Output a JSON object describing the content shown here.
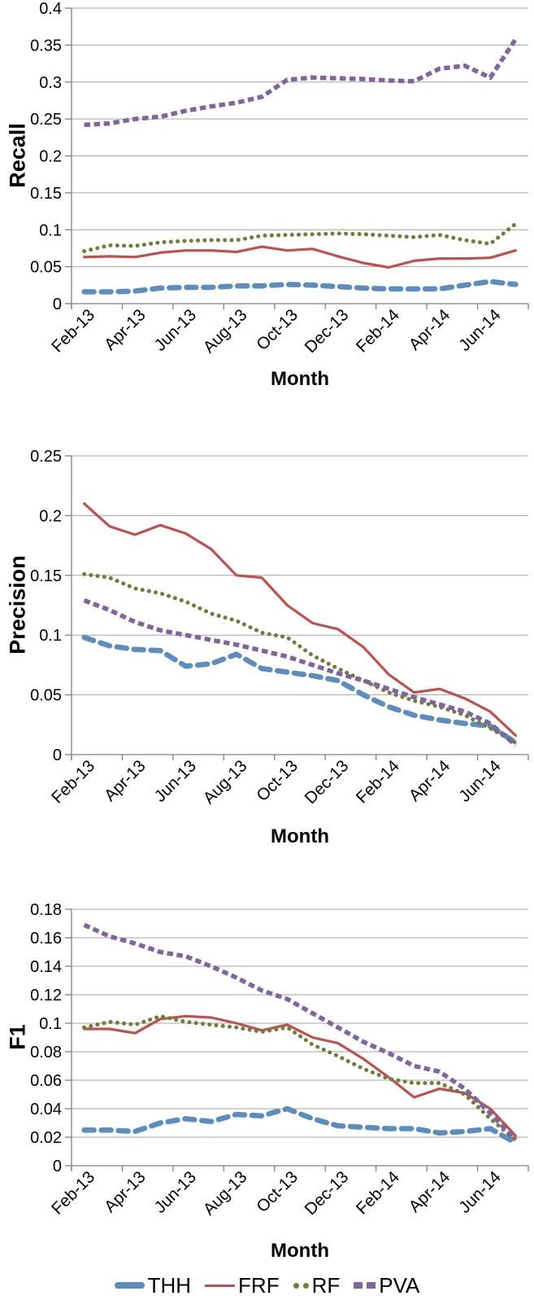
{
  "colors": {
    "THH": "#5B8DC0",
    "FRF": "#C0504D",
    "RF": "#6E7F3A",
    "PVA": "#8064A2",
    "grid": "#A6A6A6",
    "axis": "#808080",
    "text": "#000000"
  },
  "legend": {
    "items": [
      {
        "label": "THH"
      },
      {
        "label": "FRF"
      },
      {
        "label": "RF"
      },
      {
        "label": "PVA"
      }
    ]
  },
  "chart_data": [
    {
      "type": "line",
      "title": "",
      "ylabel": "Recall",
      "xlabel": "Month",
      "ylim": [
        0,
        0.4
      ],
      "ytick_step": 0.05,
      "ytick_labels": [
        "0",
        "0.05",
        "0.1",
        "0.15",
        "0.2",
        "0.25",
        "0.3",
        "0.35",
        "0.4"
      ],
      "grid": true,
      "legend_position": "none",
      "categories": [
        "Feb-13",
        "Mar-13",
        "Apr-13",
        "May-13",
        "Jun-13",
        "Jul-13",
        "Aug-13",
        "Sep-13",
        "Oct-13",
        "Nov-13",
        "Dec-13",
        "Jan-14",
        "Feb-14",
        "Mar-14",
        "Apr-14",
        "May-14",
        "Jun-14",
        "Jul-14"
      ],
      "x_tick_labels": [
        "Feb-13",
        "Apr-13",
        "Jun-13",
        "Aug-13",
        "Oct-13",
        "Dec-13",
        "Feb-14",
        "Apr-14",
        "Jun-14"
      ],
      "series": [
        {
          "name": "THH",
          "values": [
            0.016,
            0.016,
            0.017,
            0.021,
            0.022,
            0.022,
            0.024,
            0.024,
            0.026,
            0.025,
            0.023,
            0.021,
            0.02,
            0.02,
            0.02,
            0.025,
            0.03,
            0.026
          ]
        },
        {
          "name": "FRF",
          "values": [
            0.063,
            0.064,
            0.063,
            0.069,
            0.072,
            0.072,
            0.07,
            0.077,
            0.072,
            0.074,
            0.064,
            0.055,
            0.049,
            0.058,
            0.061,
            0.061,
            0.062,
            0.072
          ]
        },
        {
          "name": "RF",
          "values": [
            0.071,
            0.079,
            0.078,
            0.083,
            0.085,
            0.086,
            0.086,
            0.092,
            0.093,
            0.094,
            0.095,
            0.094,
            0.092,
            0.09,
            0.093,
            0.086,
            0.081,
            0.108
          ]
        },
        {
          "name": "PVA",
          "values": [
            0.242,
            0.244,
            0.25,
            0.253,
            0.261,
            0.267,
            0.272,
            0.28,
            0.303,
            0.306,
            0.305,
            0.304,
            0.302,
            0.301,
            0.318,
            0.322,
            0.306,
            0.358
          ]
        }
      ]
    },
    {
      "type": "line",
      "title": "",
      "ylabel": "Precision",
      "xlabel": "Month",
      "ylim": [
        0,
        0.25
      ],
      "ytick_step": 0.05,
      "ytick_labels": [
        "0",
        "0.05",
        "0.1",
        "0.15",
        "0.2",
        "0.25"
      ],
      "grid": true,
      "legend_position": "none",
      "categories": [
        "Feb-13",
        "Mar-13",
        "Apr-13",
        "May-13",
        "Jun-13",
        "Jul-13",
        "Aug-13",
        "Sep-13",
        "Oct-13",
        "Nov-13",
        "Dec-13",
        "Jan-14",
        "Feb-14",
        "Mar-14",
        "Apr-14",
        "May-14",
        "Jun-14",
        "Jul-14"
      ],
      "x_tick_labels": [
        "Feb-13",
        "Apr-13",
        "Jun-13",
        "Aug-13",
        "Oct-13",
        "Dec-13",
        "Feb-14",
        "Apr-14",
        "Jun-14"
      ],
      "series": [
        {
          "name": "THH",
          "values": [
            0.098,
            0.091,
            0.088,
            0.087,
            0.074,
            0.076,
            0.084,
            0.072,
            0.069,
            0.066,
            0.062,
            0.05,
            0.04,
            0.033,
            0.029,
            0.026,
            0.024,
            0.01
          ]
        },
        {
          "name": "FRF",
          "values": [
            0.21,
            0.191,
            0.184,
            0.192,
            0.185,
            0.172,
            0.15,
            0.148,
            0.125,
            0.11,
            0.105,
            0.09,
            0.067,
            0.052,
            0.055,
            0.047,
            0.036,
            0.016
          ]
        },
        {
          "name": "RF",
          "values": [
            0.151,
            0.148,
            0.139,
            0.135,
            0.128,
            0.118,
            0.112,
            0.102,
            0.098,
            0.083,
            0.072,
            0.062,
            0.052,
            0.045,
            0.04,
            0.033,
            0.022,
            0.01
          ]
        },
        {
          "name": "PVA",
          "values": [
            0.129,
            0.121,
            0.111,
            0.104,
            0.1,
            0.096,
            0.092,
            0.087,
            0.082,
            0.075,
            0.068,
            0.062,
            0.055,
            0.048,
            0.042,
            0.036,
            0.026,
            0.008
          ]
        }
      ]
    },
    {
      "type": "line",
      "title": "",
      "ylabel": "F1",
      "xlabel": "Month",
      "ylim": [
        0,
        0.18
      ],
      "ytick_step": 0.02,
      "ytick_labels": [
        "0",
        "0.02",
        "0.04",
        "0.06",
        "0.08",
        "0.1",
        "0.12",
        "0.14",
        "0.16",
        "0.18"
      ],
      "grid": true,
      "legend_position": "bottom",
      "categories": [
        "Feb-13",
        "Mar-13",
        "Apr-13",
        "May-13",
        "Jun-13",
        "Jul-13",
        "Aug-13",
        "Sep-13",
        "Oct-13",
        "Nov-13",
        "Dec-13",
        "Jan-14",
        "Feb-14",
        "Mar-14",
        "Apr-14",
        "May-14",
        "Jun-14",
        "Jul-14"
      ],
      "x_tick_labels": [
        "Feb-13",
        "Apr-13",
        "Jun-13",
        "Aug-13",
        "Oct-13",
        "Dec-13",
        "Feb-14",
        "Apr-14",
        "Jun-14"
      ],
      "series": [
        {
          "name": "THH",
          "values": [
            0.025,
            0.025,
            0.024,
            0.03,
            0.033,
            0.031,
            0.036,
            0.035,
            0.04,
            0.033,
            0.028,
            0.027,
            0.026,
            0.026,
            0.023,
            0.024,
            0.026,
            0.016
          ]
        },
        {
          "name": "FRF",
          "values": [
            0.096,
            0.096,
            0.093,
            0.103,
            0.105,
            0.104,
            0.1,
            0.095,
            0.099,
            0.09,
            0.086,
            0.075,
            0.062,
            0.048,
            0.054,
            0.051,
            0.04,
            0.021
          ]
        },
        {
          "name": "RF",
          "values": [
            0.097,
            0.101,
            0.099,
            0.105,
            0.101,
            0.099,
            0.097,
            0.094,
            0.097,
            0.085,
            0.077,
            0.068,
            0.061,
            0.058,
            0.058,
            0.05,
            0.033,
            0.018
          ]
        },
        {
          "name": "PVA",
          "values": [
            0.169,
            0.161,
            0.156,
            0.15,
            0.147,
            0.14,
            0.132,
            0.123,
            0.117,
            0.107,
            0.097,
            0.087,
            0.079,
            0.07,
            0.066,
            0.054,
            0.037,
            0.018
          ]
        }
      ]
    }
  ]
}
